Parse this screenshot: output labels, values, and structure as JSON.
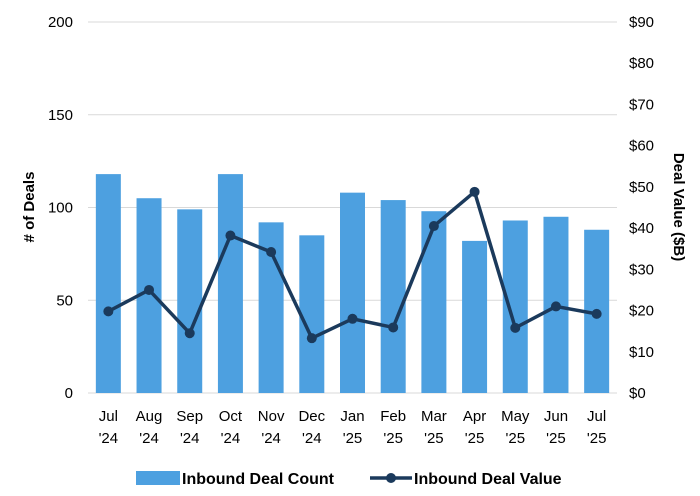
{
  "chart_data": {
    "type": "bar+line",
    "categories": [
      [
        "Jul",
        "'24"
      ],
      [
        "Aug",
        "'24"
      ],
      [
        "Sep",
        "'24"
      ],
      [
        "Oct",
        "'24"
      ],
      [
        "Nov",
        "'24"
      ],
      [
        "Dec",
        "'24"
      ],
      [
        "Jan",
        "'25"
      ],
      [
        "Feb",
        "'25"
      ],
      [
        "Mar",
        "'25"
      ],
      [
        "Apr",
        "'25"
      ],
      [
        "May",
        "'25"
      ],
      [
        "Jun",
        "'25"
      ],
      [
        "Jul",
        "'25"
      ]
    ],
    "series": [
      {
        "name": "Inbound Deal Count",
        "type": "bar",
        "axis": "left",
        "color": "#4da0e0",
        "values": [
          118,
          105,
          99,
          118,
          92,
          85,
          108,
          104,
          98,
          82,
          93,
          95,
          88
        ]
      },
      {
        "name": "Inbound Deal Value",
        "type": "line",
        "axis": "right",
        "color": "#1b3a5c",
        "values": [
          19.8,
          25.0,
          14.5,
          38.2,
          34.2,
          13.3,
          18.0,
          15.9,
          40.5,
          48.8,
          15.8,
          21.0,
          19.2
        ]
      }
    ],
    "y_left": {
      "label": "# of Deals",
      "min": 0,
      "max": 200,
      "ticks": [
        "0",
        "50",
        "100",
        "150",
        "200"
      ]
    },
    "y_right": {
      "label": "Deal Value ($B)",
      "min": 0,
      "max": 90,
      "ticks": [
        "$0",
        "$10",
        "$20",
        "$30",
        "$40",
        "$50",
        "$60",
        "$70",
        "$80",
        "$90"
      ]
    },
    "gridlines": true,
    "legend_position": "bottom"
  }
}
